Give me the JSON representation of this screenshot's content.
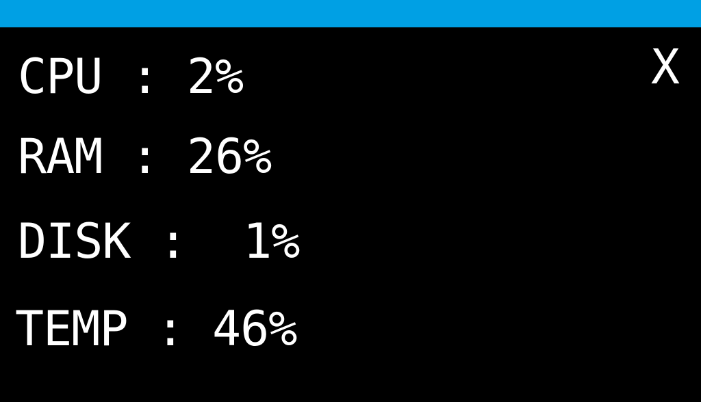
{
  "stats": {
    "cpu": {
      "label": "CPU",
      "separator": " : ",
      "value": "2%"
    },
    "ram": {
      "label": "RAM",
      "separator": " : ",
      "value": "26%"
    },
    "disk": {
      "label": "DISK",
      "separator": " : ",
      "value": " 1%"
    },
    "temp": {
      "label": "TEMP",
      "separator": " : ",
      "value": "46%"
    }
  },
  "close_label": "X",
  "colors": {
    "top_bar": "#00a0e4",
    "background": "#000000",
    "text": "#ffffff"
  }
}
